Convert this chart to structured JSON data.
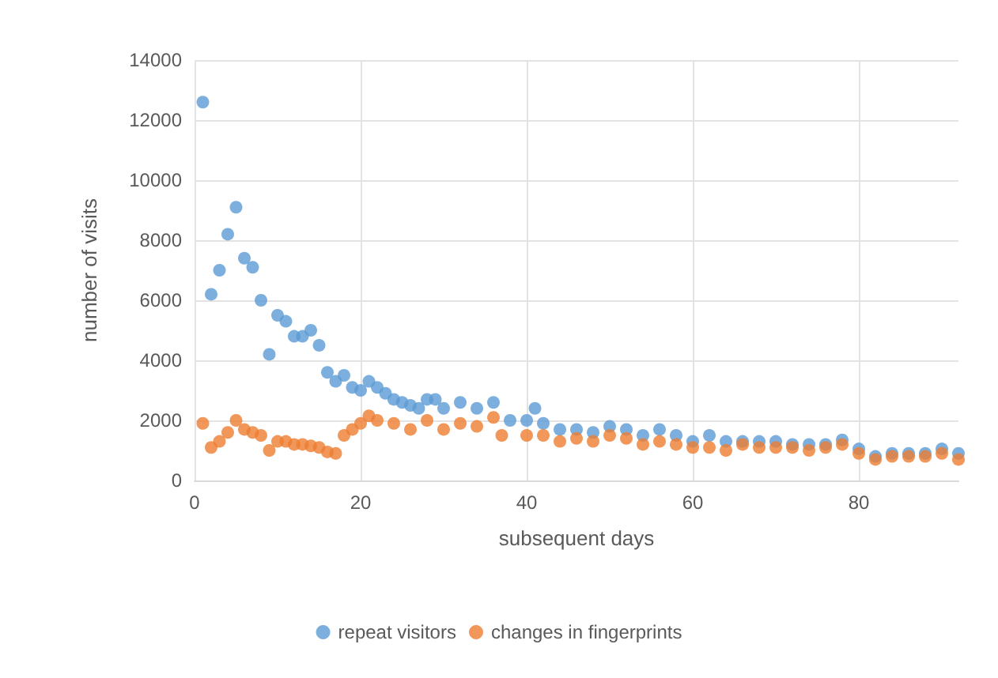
{
  "chart_data": {
    "type": "scatter",
    "xlabel": "subsequent days",
    "ylabel": "number of visits",
    "xlim": [
      0,
      92
    ],
    "xticks": [
      0,
      20,
      40,
      60,
      80
    ],
    "ylim": [
      0,
      14000
    ],
    "yticks": [
      0,
      2000,
      4000,
      6000,
      8000,
      10000,
      12000,
      14000
    ],
    "grid": true,
    "legend": "bottom",
    "marker": "circle",
    "series": [
      {
        "name": "repeat visitors",
        "color": "#5b9bd5",
        "x": [
          1,
          2,
          3,
          4,
          5,
          6,
          7,
          8,
          9,
          10,
          11,
          12,
          13,
          14,
          15,
          16,
          17,
          18,
          19,
          20,
          21,
          22,
          23,
          24,
          25,
          26,
          27,
          28,
          29,
          30,
          32,
          34,
          36,
          38,
          40,
          41,
          42,
          44,
          46,
          48,
          50,
          52,
          54,
          56,
          58,
          60,
          62,
          64,
          66,
          68,
          70,
          72,
          74,
          76,
          78,
          80,
          82,
          84,
          86,
          88,
          90,
          92
        ],
        "values": [
          12600,
          6200,
          7000,
          8200,
          9100,
          7400,
          7100,
          6000,
          4200,
          5500,
          5300,
          4800,
          4800,
          5000,
          4500,
          3600,
          3300,
          3500,
          3100,
          3000,
          3300,
          3100,
          2900,
          2700,
          2600,
          2500,
          2400,
          2700,
          2700,
          2400,
          2600,
          2400,
          2600,
          2000,
          2000,
          2400,
          1900,
          1700,
          1700,
          1600,
          1800,
          1700,
          1500,
          1700,
          1500,
          1300,
          1500,
          1300,
          1300,
          1300,
          1300,
          1200,
          1200,
          1200,
          1350,
          1050,
          800,
          900,
          900,
          900,
          1050,
          900
        ]
      },
      {
        "name": "changes in fingerprints",
        "color": "#ed7d31",
        "x": [
          1,
          2,
          3,
          4,
          5,
          6,
          7,
          8,
          9,
          10,
          11,
          12,
          13,
          14,
          15,
          16,
          17,
          18,
          19,
          20,
          21,
          22,
          24,
          26,
          28,
          30,
          32,
          34,
          36,
          37,
          40,
          42,
          44,
          46,
          48,
          50,
          52,
          54,
          56,
          58,
          60,
          62,
          64,
          66,
          68,
          70,
          72,
          74,
          76,
          78,
          80,
          82,
          84,
          86,
          88,
          90,
          92
        ],
        "values": [
          1900,
          1100,
          1300,
          1600,
          2000,
          1700,
          1600,
          1500,
          1000,
          1300,
          1300,
          1200,
          1200,
          1150,
          1100,
          950,
          900,
          1500,
          1700,
          1900,
          2150,
          2000,
          1900,
          1700,
          2000,
          1700,
          1900,
          1800,
          2100,
          1500,
          1500,
          1500,
          1300,
          1400,
          1300,
          1500,
          1400,
          1200,
          1300,
          1200,
          1100,
          1100,
          1000,
          1200,
          1100,
          1100,
          1100,
          1000,
          1100,
          1200,
          900,
          700,
          800,
          800,
          800,
          900,
          700
        ]
      }
    ]
  }
}
